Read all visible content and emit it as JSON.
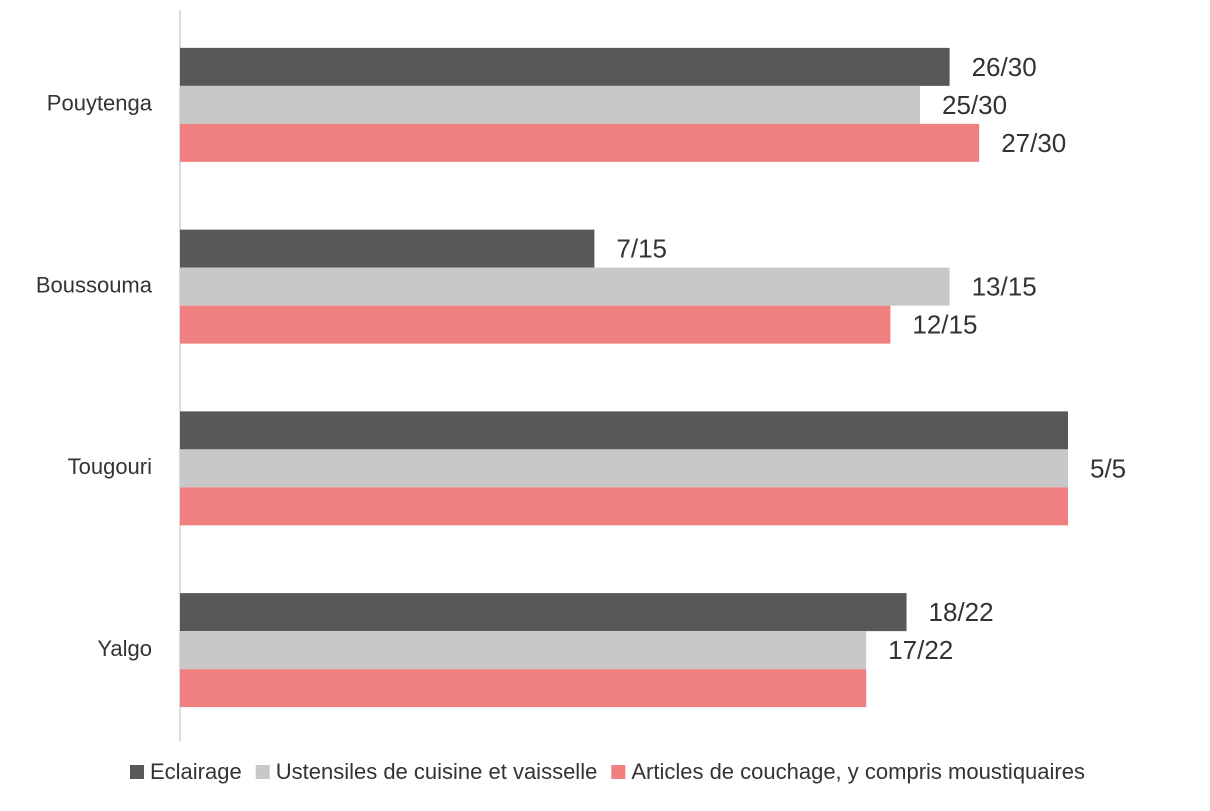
{
  "chart_data": {
    "type": "bar",
    "orientation": "horizontal",
    "categories": [
      "Pouytenga",
      "Boussouma",
      "Tougouri",
      "Yalgo"
    ],
    "totals": [
      30,
      15,
      5,
      22
    ],
    "series": [
      {
        "name": "Eclairage",
        "color": "#58585a",
        "values": [
          26,
          7,
          5,
          18
        ],
        "value_labels": [
          "26/30",
          "7/15",
          null,
          "18/22"
        ]
      },
      {
        "name": "Ustensiles de cuisine et vaisselle",
        "color": "#c8c8c8",
        "values": [
          25,
          13,
          5,
          17
        ],
        "value_labels": [
          "25/30",
          "13/15",
          "5/5",
          "17/22"
        ]
      },
      {
        "name": "Articles de couchage, y compris moustiquaires",
        "color": "#f08080",
        "values": [
          27,
          12,
          5,
          17
        ],
        "value_labels": [
          "27/30",
          "12/15",
          null,
          null
        ]
      }
    ],
    "legend": "bottom"
  }
}
